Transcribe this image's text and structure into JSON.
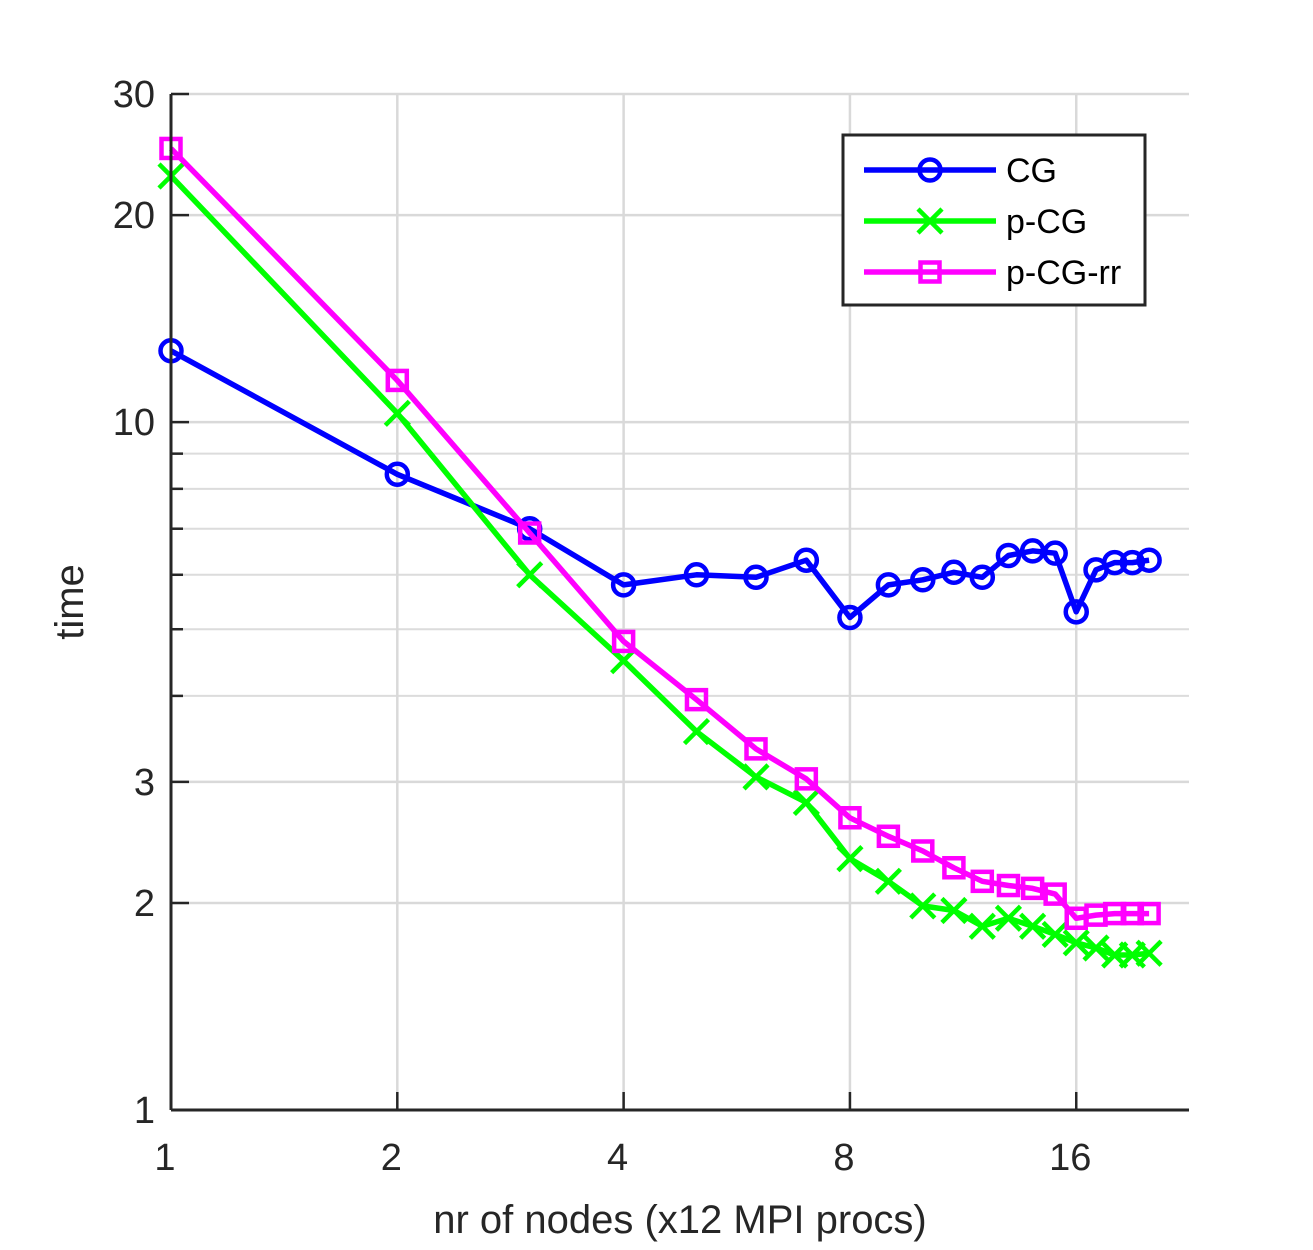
{
  "chart_data": {
    "type": "line",
    "title": "",
    "xlabel": "nr of nodes (x12 MPI procs)",
    "ylabel": "time",
    "xscale": "log2",
    "yscale": "log10",
    "xlim": [
      1,
      22.6
    ],
    "ylim": [
      1,
      30
    ],
    "xticks": [
      1,
      2,
      4,
      8,
      16
    ],
    "xticklabels": [
      "1",
      "2",
      "4",
      "8",
      "16"
    ],
    "yticks": [
      1,
      2,
      3,
      10,
      20,
      30
    ],
    "yticklabels": [
      "1",
      "2",
      "3",
      "10",
      "20",
      "30"
    ],
    "grid": true,
    "legend_position": "top-right",
    "x": [
      1,
      2,
      3,
      4,
      5,
      6,
      7,
      8,
      9,
      10,
      11,
      12,
      13,
      14,
      15,
      16,
      17,
      18,
      19,
      20
    ],
    "series": [
      {
        "name": "CG",
        "color": "#0000ff",
        "marker": "circle",
        "values": [
          12.7,
          8.4,
          7.0,
          5.8,
          6.0,
          5.95,
          6.3,
          5.2,
          5.8,
          5.9,
          6.05,
          5.95,
          6.4,
          6.5,
          6.45,
          5.3,
          6.1,
          6.25,
          6.25,
          6.3
        ]
      },
      {
        "name": "p-CG",
        "color": "#00ff00",
        "marker": "x",
        "values": [
          22.8,
          10.3,
          6.0,
          4.5,
          3.55,
          3.05,
          2.8,
          2.32,
          2.15,
          1.98,
          1.95,
          1.85,
          1.9,
          1.85,
          1.8,
          1.75,
          1.72,
          1.68,
          1.68,
          1.69
        ]
      },
      {
        "name": "p-CG-rr",
        "color": "#ff00ff",
        "marker": "square",
        "values": [
          25.0,
          11.5,
          6.9,
          4.8,
          3.95,
          3.35,
          3.03,
          2.66,
          2.5,
          2.38,
          2.25,
          2.15,
          2.12,
          2.1,
          2.06,
          1.9,
          1.92,
          1.93,
          1.93,
          1.93
        ]
      }
    ]
  }
}
